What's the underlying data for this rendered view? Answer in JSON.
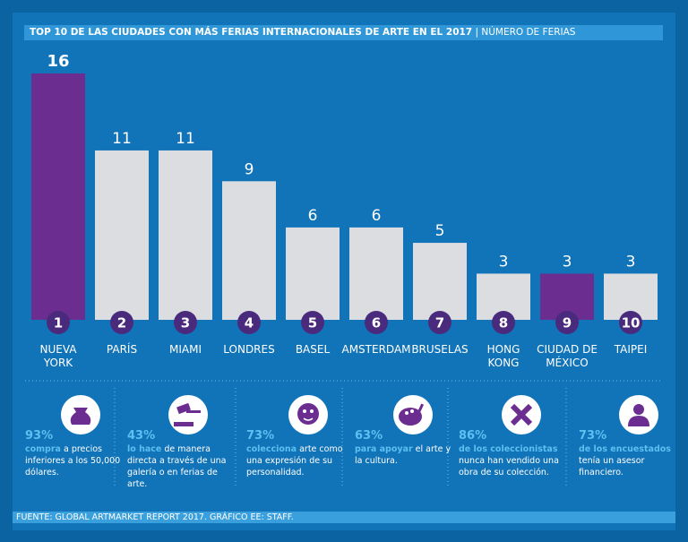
{
  "chart_data": {
    "type": "bar",
    "title": "TOP 10 DE LAS CIUDADES CON MÁS FERIAS INTERNACIONALES DE ARTE EN EL 2017",
    "subtitle": "| NÚMERO DE FERIAS",
    "categories": [
      "NUEVA\nYORK",
      "PARÍS",
      "MIAMI",
      "LONDRES",
      "BASEL",
      "AMSTERDAM",
      "BRUSELAS",
      "HONG\nKONG",
      "CIUDAD DE\nMÉXICO",
      "TAIPEI"
    ],
    "ranks": [
      1,
      2,
      3,
      4,
      5,
      6,
      7,
      8,
      9,
      10
    ],
    "values": [
      16,
      11,
      11,
      9,
      6,
      6,
      5,
      3,
      3,
      3
    ],
    "colors": [
      "#6b2d90",
      "#dcdde1",
      "#dcdde1",
      "#dcdde1",
      "#dcdde1",
      "#dcdde1",
      "#dcdde1",
      "#dcdde1",
      "#6b2d90",
      "#dcdde1"
    ],
    "ylim": [
      0,
      16
    ]
  },
  "stats": [
    {
      "pct": "93%",
      "bold": "compra",
      "text": " a precios inferiores a los 50,000 dólares."
    },
    {
      "pct": "43%",
      "bold": "lo hace",
      "text": " de manera directa a través de una galería o en ferias de arte."
    },
    {
      "pct": "73%",
      "bold": "colecciona",
      "text": " arte como una expresión de su personalidad."
    },
    {
      "pct": "63%",
      "bold": "para apoyar",
      "text": " el arte y la cultura."
    },
    {
      "pct": "86%",
      "bold": "de los coleccionistas",
      "text": " nunca han vendido una obra de su colección."
    },
    {
      "pct": "73%",
      "bold": "de los encuestados",
      "text": " tenía un asesor financiero."
    }
  ],
  "footer": "FUENTE: GLOBAL ARTMARKET REPORT 2017. GRÁFICO EE: STAFF."
}
